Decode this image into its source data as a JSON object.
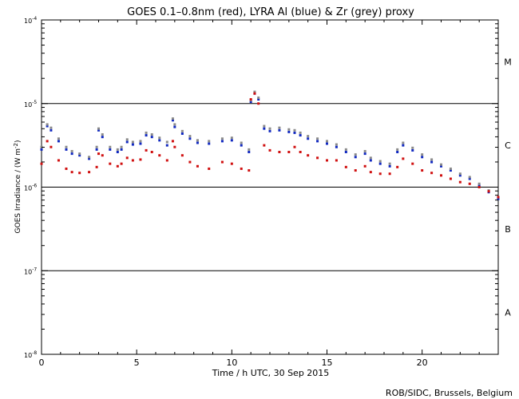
{
  "chart_data": {
    "type": "scatter",
    "title": "GOES 0.1–0.8nm (red), LYRA Al (blue) & Zr (grey) proxy",
    "xlabel": "Time / h UTC, 30 Sep 2015",
    "ylabel": "GOES Irradiance / (W m",
    "ylabel_sup": "-2",
    "ylabel_close": ")",
    "xlim": [
      0,
      24
    ],
    "ylim_log10": [
      -8,
      -4
    ],
    "x_ticks": [
      0,
      5,
      10,
      15,
      20
    ],
    "x_tick_labels": [
      "0",
      "5",
      "10",
      "15",
      "20"
    ],
    "y_ticks": [
      {
        "exp": -4,
        "base": "10",
        "sup": "-4"
      },
      {
        "exp": -5,
        "base": "10",
        "sup": "-5"
      },
      {
        "exp": -6,
        "base": "10",
        "sup": "-6"
      },
      {
        "exp": -7,
        "base": "10",
        "sup": "-7"
      },
      {
        "exp": -8,
        "base": "10",
        "sup": "-8"
      }
    ],
    "class_lines_log10": [
      -5,
      -6,
      -7
    ],
    "flare_classes": [
      {
        "label": "M",
        "center_log10": -4.5
      },
      {
        "label": "C",
        "center_log10": -5.5
      },
      {
        "label": "B",
        "center_log10": -6.5
      },
      {
        "label": "A",
        "center_log10": -7.5
      }
    ],
    "series": [
      {
        "name": "GOES 0.1-0.8nm",
        "color": "#d01010",
        "x": [
          0.0,
          0.3,
          0.5,
          0.9,
          1.3,
          1.6,
          2.0,
          2.5,
          2.9,
          3.0,
          3.2,
          3.6,
          4.0,
          4.2,
          4.5,
          4.8,
          5.2,
          5.5,
          5.8,
          6.2,
          6.6,
          6.9,
          7.0,
          7.4,
          7.8,
          8.2,
          8.8,
          9.5,
          10.0,
          10.5,
          10.9,
          11.0,
          11.2,
          11.4,
          11.7,
          12.0,
          12.5,
          13.0,
          13.3,
          13.6,
          14.0,
          14.5,
          15.0,
          15.5,
          16.0,
          16.5,
          17.0,
          17.3,
          17.8,
          18.3,
          18.7,
          19.0,
          19.5,
          20.0,
          20.5,
          21.0,
          21.5,
          22.0,
          22.5,
          23.0,
          23.5,
          24.0
        ],
        "log10_y": [
          -5.72,
          -5.45,
          -5.52,
          -5.68,
          -5.78,
          -5.82,
          -5.83,
          -5.82,
          -5.76,
          -5.6,
          -5.62,
          -5.72,
          -5.75,
          -5.72,
          -5.65,
          -5.68,
          -5.67,
          -5.56,
          -5.58,
          -5.62,
          -5.68,
          -5.45,
          -5.52,
          -5.62,
          -5.7,
          -5.75,
          -5.78,
          -5.7,
          -5.72,
          -5.78,
          -5.8,
          -4.95,
          -4.88,
          -5.0,
          -5.5,
          -5.56,
          -5.58,
          -5.58,
          -5.52,
          -5.58,
          -5.62,
          -5.65,
          -5.68,
          -5.68,
          -5.76,
          -5.8,
          -5.75,
          -5.82,
          -5.84,
          -5.84,
          -5.76,
          -5.66,
          -5.72,
          -5.8,
          -5.83,
          -5.86,
          -5.9,
          -5.94,
          -5.96,
          -6.0,
          -6.05,
          -6.12
        ]
      },
      {
        "name": "LYRA Al proxy",
        "color": "#1028c0",
        "x": [
          0.0,
          0.3,
          0.5,
          0.9,
          1.3,
          1.6,
          2.0,
          2.5,
          2.9,
          3.0,
          3.2,
          3.6,
          4.0,
          4.2,
          4.5,
          4.8,
          5.2,
          5.5,
          5.8,
          6.2,
          6.6,
          6.9,
          7.0,
          7.4,
          7.8,
          8.2,
          8.8,
          9.5,
          10.0,
          10.5,
          10.9,
          11.0,
          11.2,
          11.4,
          11.7,
          12.0,
          12.5,
          13.0,
          13.3,
          13.6,
          14.0,
          14.5,
          15.0,
          15.5,
          16.0,
          16.5,
          17.0,
          17.3,
          17.8,
          18.3,
          18.7,
          19.0,
          19.5,
          20.0,
          20.5,
          21.0,
          21.5,
          22.0,
          22.5,
          23.0,
          23.5,
          24.0
        ],
        "log10_y": [
          -5.55,
          -5.27,
          -5.32,
          -5.45,
          -5.55,
          -5.6,
          -5.62,
          -5.66,
          -5.55,
          -5.32,
          -5.4,
          -5.55,
          -5.58,
          -5.55,
          -5.46,
          -5.49,
          -5.48,
          -5.38,
          -5.4,
          -5.44,
          -5.5,
          -5.2,
          -5.28,
          -5.36,
          -5.42,
          -5.47,
          -5.48,
          -5.45,
          -5.44,
          -5.5,
          -5.58,
          -4.98,
          -4.88,
          -4.95,
          -5.3,
          -5.33,
          -5.32,
          -5.34,
          -5.35,
          -5.38,
          -5.42,
          -5.45,
          -5.48,
          -5.52,
          -5.58,
          -5.64,
          -5.6,
          -5.68,
          -5.72,
          -5.75,
          -5.58,
          -5.5,
          -5.56,
          -5.64,
          -5.7,
          -5.75,
          -5.8,
          -5.86,
          -5.9,
          -5.98,
          -6.06,
          -6.14
        ]
      },
      {
        "name": "LYRA Zr proxy",
        "color": "#8a8a8a",
        "x": [
          0.0,
          0.3,
          0.5,
          0.9,
          1.3,
          1.6,
          2.0,
          2.5,
          2.9,
          3.0,
          3.2,
          3.6,
          4.0,
          4.2,
          4.5,
          4.8,
          5.2,
          5.5,
          5.8,
          6.2,
          6.6,
          6.9,
          7.0,
          7.4,
          7.8,
          8.2,
          8.8,
          9.5,
          10.0,
          10.5,
          10.9,
          11.0,
          11.2,
          11.4,
          11.7,
          12.0,
          12.5,
          13.0,
          13.3,
          13.6,
          14.0,
          14.5,
          15.0,
          15.5,
          16.0,
          16.5,
          17.0,
          17.3,
          17.8,
          18.3,
          18.7,
          19.0,
          19.5,
          20.0,
          20.5,
          21.0,
          21.5,
          22.0,
          22.5,
          23.0,
          23.5,
          24.0
        ],
        "log10_y": [
          -5.52,
          -5.25,
          -5.29,
          -5.42,
          -5.52,
          -5.57,
          -5.6,
          -5.64,
          -5.52,
          -5.3,
          -5.37,
          -5.52,
          -5.55,
          -5.52,
          -5.43,
          -5.46,
          -5.45,
          -5.35,
          -5.37,
          -5.41,
          -5.46,
          -5.18,
          -5.25,
          -5.33,
          -5.39,
          -5.44,
          -5.45,
          -5.42,
          -5.41,
          -5.47,
          -5.55,
          -4.96,
          -4.86,
          -4.93,
          -5.27,
          -5.3,
          -5.29,
          -5.31,
          -5.32,
          -5.35,
          -5.39,
          -5.42,
          -5.45,
          -5.49,
          -5.55,
          -5.61,
          -5.57,
          -5.65,
          -5.69,
          -5.72,
          -5.55,
          -5.47,
          -5.53,
          -5.61,
          -5.67,
          -5.73,
          -5.78,
          -5.84,
          -5.88,
          -5.96,
          -6.04,
          -6.12
        ]
      }
    ],
    "credit": "ROB/SIDC, Brussels, Belgium"
  }
}
